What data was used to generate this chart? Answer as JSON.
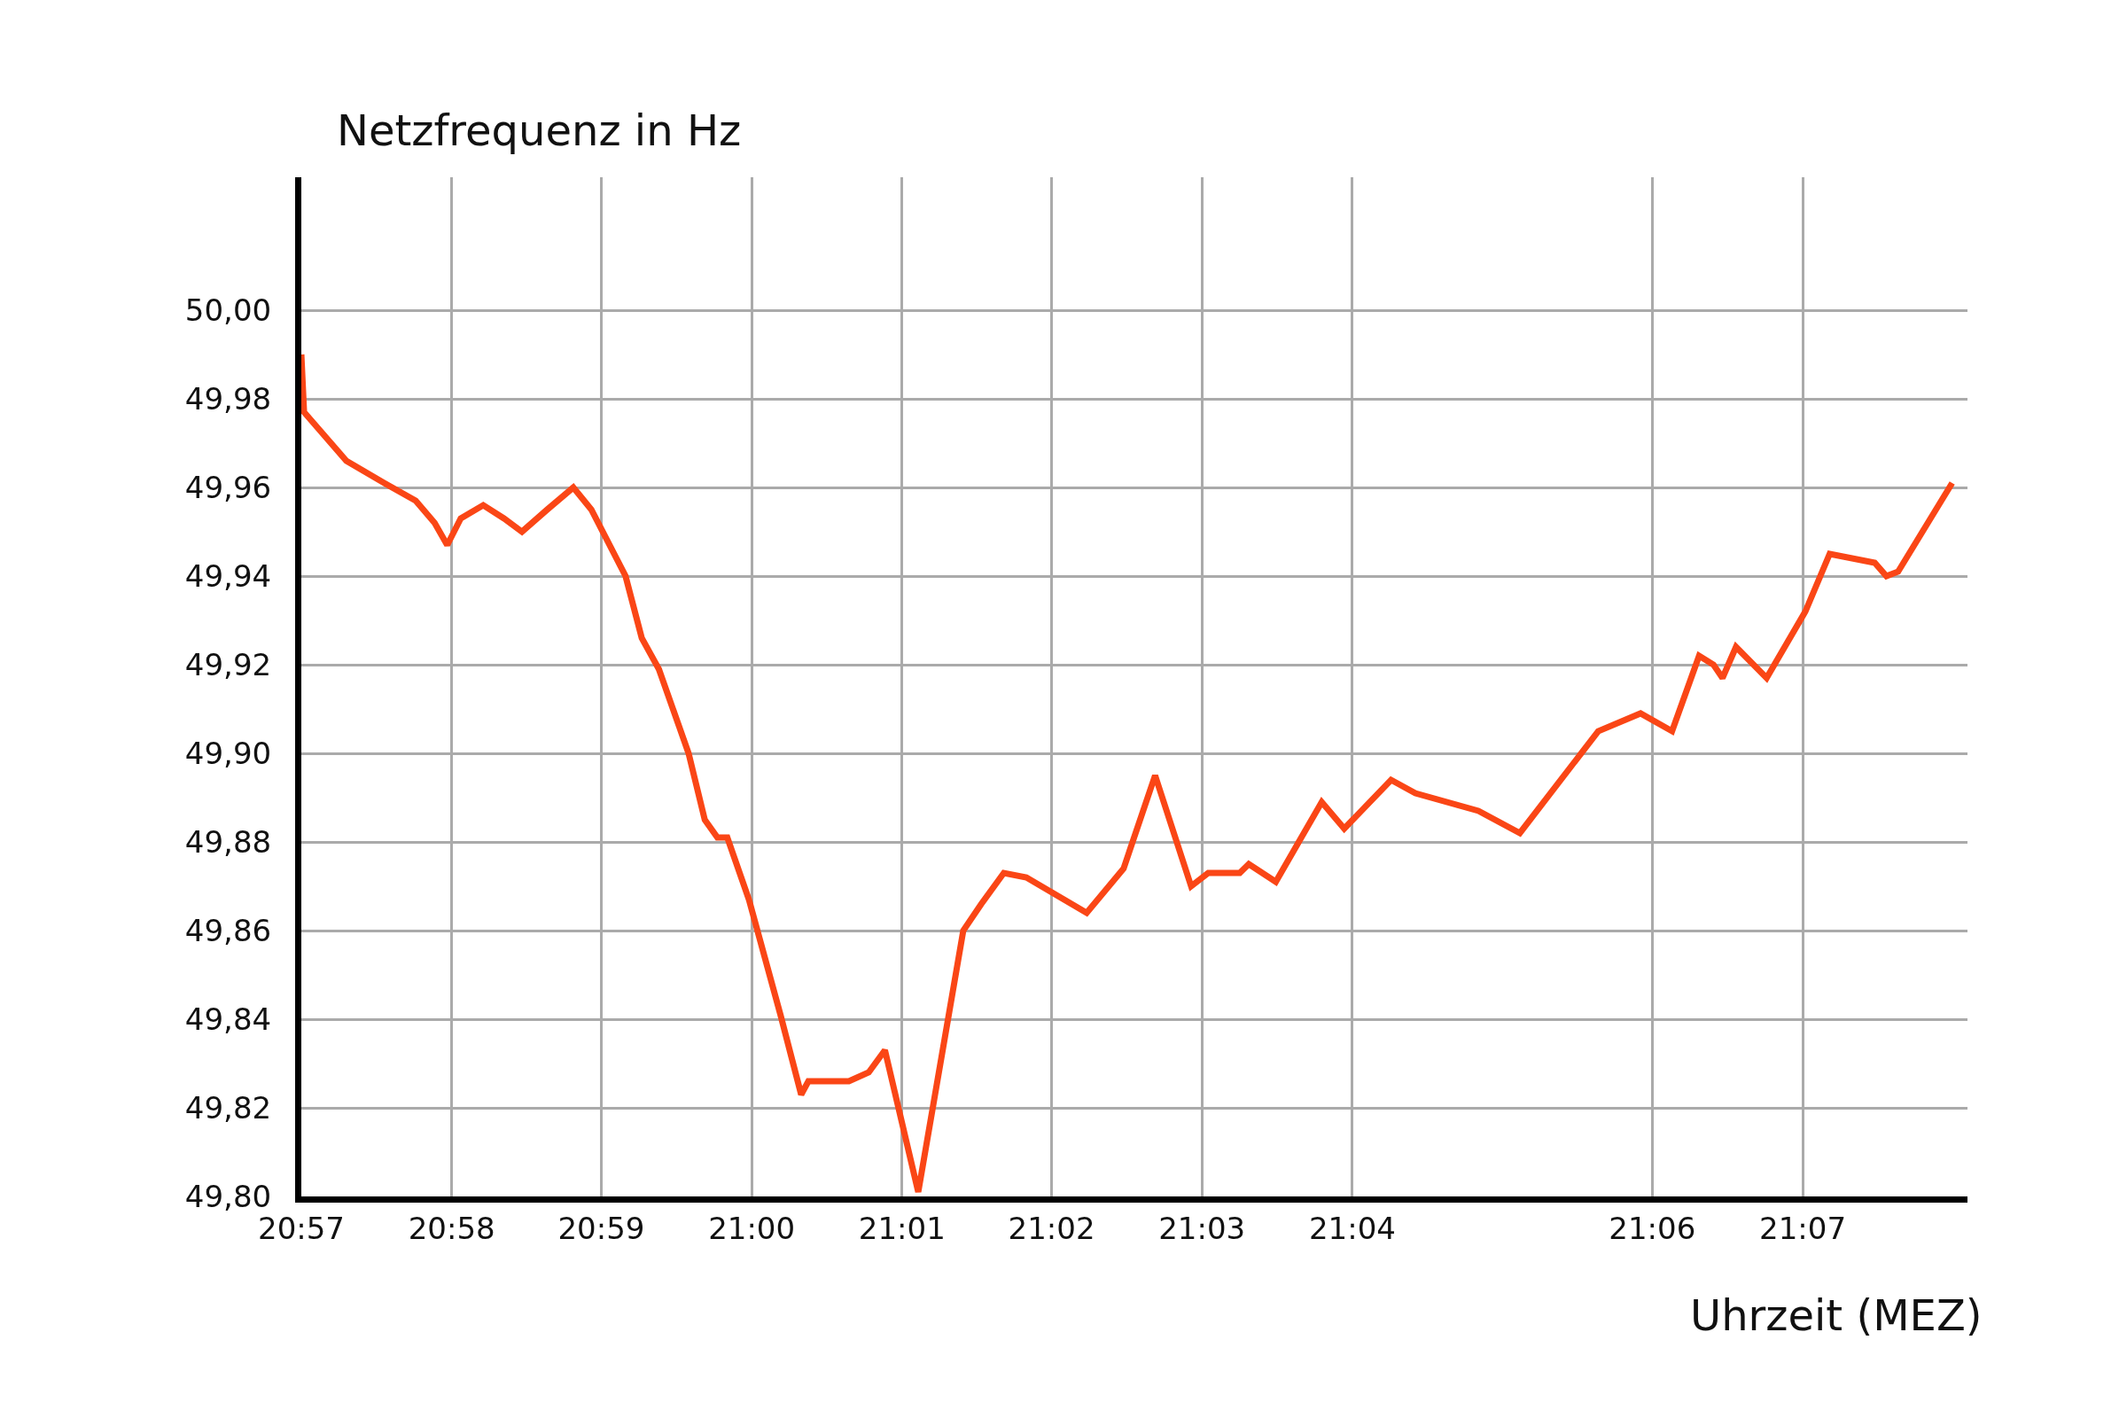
{
  "chart_data": {
    "type": "line",
    "ylabel": "Netzfrequenz in Hz",
    "xlabel": "Uhrzeit (MEZ)",
    "x": [
      20.95,
      20.9503,
      20.955,
      20.9592,
      20.9627,
      20.9648,
      20.9662,
      20.9677,
      20.9702,
      20.9725,
      20.9745,
      20.9773,
      20.9802,
      20.9822,
      20.986,
      20.9878,
      20.9897,
      20.993,
      20.9948,
      20.9962,
      20.9973,
      20.9997,
      21.0032,
      21.0055,
      21.0063,
      21.0108,
      21.013,
      21.0148,
      21.0185,
      21.0235,
      21.0255,
      21.028,
      21.0305,
      21.0372,
      21.0413,
      21.0448,
      21.0488,
      21.0507,
      21.0542,
      21.0552,
      21.0582,
      21.0633,
      21.0658,
      21.071,
      21.0737,
      21.0807,
      21.0853,
      21.094,
      21.0987,
      21.1022,
      21.1052,
      21.1068,
      21.1078,
      21.1093,
      21.1127,
      21.117,
      21.1197,
      21.1247,
      21.126,
      21.1273,
      21.1333
    ],
    "series": [
      {
        "color": "#fa4616",
        "values": [
          49.99,
          49.977,
          49.966,
          49.961,
          49.957,
          49.952,
          49.947,
          49.953,
          49.956,
          49.953,
          49.95,
          49.955,
          49.96,
          49.955,
          49.94,
          49.926,
          49.919,
          49.9,
          49.885,
          49.881,
          49.881,
          49.867,
          49.841,
          49.823,
          49.826,
          49.826,
          49.828,
          49.833,
          49.801,
          49.86,
          49.866,
          49.873,
          49.872,
          49.864,
          49.874,
          49.895,
          49.87,
          49.873,
          49.873,
          49.875,
          49.871,
          49.889,
          49.883,
          49.894,
          49.891,
          49.887,
          49.882,
          49.905,
          49.909,
          49.905,
          49.922,
          49.92,
          49.917,
          49.924,
          49.917,
          49.932,
          49.945,
          49.943,
          49.94,
          49.941,
          49.961
        ]
      }
    ],
    "xlim": [
      20.95,
      21.135
    ],
    "ylim": [
      49.8,
      50.03
    ],
    "xticks": [
      {
        "value": 20.95,
        "label": "20:57"
      },
      {
        "value": 20.9667,
        "label": "20:58"
      },
      {
        "value": 20.9833,
        "label": "20:59"
      },
      {
        "value": 21,
        "label": "21:00"
      },
      {
        "value": 21.0167,
        "label": "21:01"
      },
      {
        "value": 21.0333,
        "label": "21:02"
      },
      {
        "value": 21.05,
        "label": "21:03"
      },
      {
        "value": 21.0667,
        "label": "21:04"
      },
      {
        "value": 21.1,
        "label": "21:06"
      },
      {
        "value": 21.1167,
        "label": "21:07"
      }
    ],
    "yticks": [
      {
        "value": 49.8,
        "label": "49,80"
      },
      {
        "value": 49.82,
        "label": "49,82"
      },
      {
        "value": 49.84,
        "label": "49,84"
      },
      {
        "value": 49.86,
        "label": "49,86"
      },
      {
        "value": 49.88,
        "label": "49,88"
      },
      {
        "value": 49.9,
        "label": "49,90"
      },
      {
        "value": 49.92,
        "label": "49,92"
      },
      {
        "value": 49.94,
        "label": "49,94"
      },
      {
        "value": 49.96,
        "label": "49,96"
      },
      {
        "value": 49.98,
        "label": "49,98"
      },
      {
        "value": 50.0,
        "label": "50,00"
      }
    ],
    "grid": true,
    "line_style": "solid",
    "marker": "none"
  }
}
